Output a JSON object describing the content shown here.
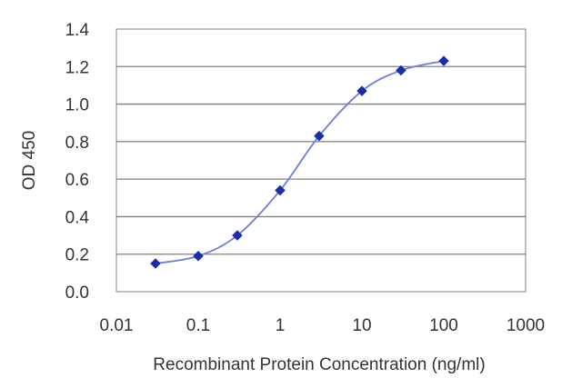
{
  "chart_data": {
    "type": "scatter",
    "title": "",
    "xlabel": "Recombinant Protein Concentration (ng/ml)",
    "ylabel": "OD 450",
    "xscale": "log",
    "xlim": [
      0.01,
      1000
    ],
    "ylim": [
      0,
      1.4
    ],
    "x_ticks": [
      "0.01",
      "0.1",
      "1",
      "10",
      "100",
      "1000"
    ],
    "y_ticks": [
      "0.0",
      "0.2",
      "0.4",
      "0.6",
      "0.8",
      "1.0",
      "1.2",
      "1.4"
    ],
    "grid": "horizontal",
    "fit_curve": "sigmoidal",
    "series": [
      {
        "x": [
          0.03,
          0.1,
          0.3,
          1,
          3,
          10,
          30,
          100
        ],
        "y": [
          0.15,
          0.19,
          0.3,
          0.54,
          0.83,
          1.07,
          1.18,
          1.23
        ]
      }
    ],
    "colors": {
      "series": "#1a2ea8",
      "curve": "#6f7ae0",
      "grid": "#808080",
      "axis": "#808080"
    }
  }
}
